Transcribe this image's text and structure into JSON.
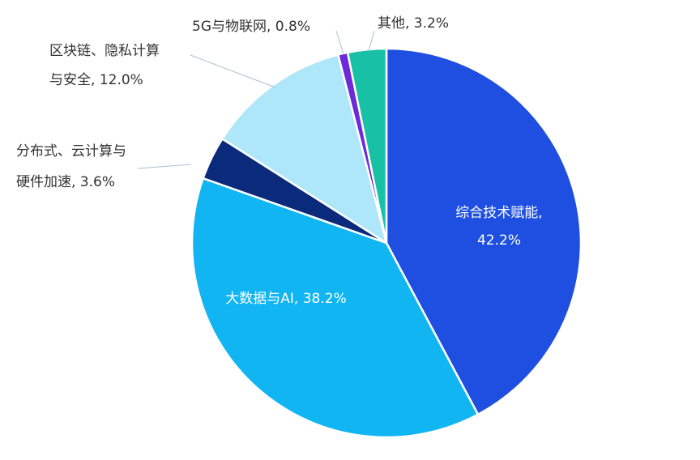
{
  "chart_data": {
    "type": "pie",
    "title": "",
    "slices": [
      {
        "label": "综合技术赋能",
        "value": 42.2,
        "color": "#1e4fe0",
        "label_lines": [
          "综合技术赋能,",
          "42.2%"
        ]
      },
      {
        "label": "大数据与AI",
        "value": 38.2,
        "color": "#10b5f2",
        "label_lines": [
          "大数据与AI, 38.2%"
        ]
      },
      {
        "label": "分布式、云计算与硬件加速",
        "value": 3.6,
        "color": "#0a2a7c",
        "label_lines": [
          "分布式、云计算与",
          "硬件加速, 3.6%"
        ]
      },
      {
        "label": "区块链、隐私计算与安全",
        "value": 12.0,
        "color": "#aee6fa",
        "label_lines": [
          "区块链、隐私计算",
          "与安全, 12.0%"
        ]
      },
      {
        "label": "5G与物联网",
        "value": 0.8,
        "color": "#6c2bd9",
        "label_lines": [
          "5G与物联网, 0.8%"
        ]
      },
      {
        "label": "其他",
        "value": 3.2,
        "color": "#18c1a6",
        "label_lines": [
          "其他, 3.2%"
        ]
      }
    ]
  }
}
